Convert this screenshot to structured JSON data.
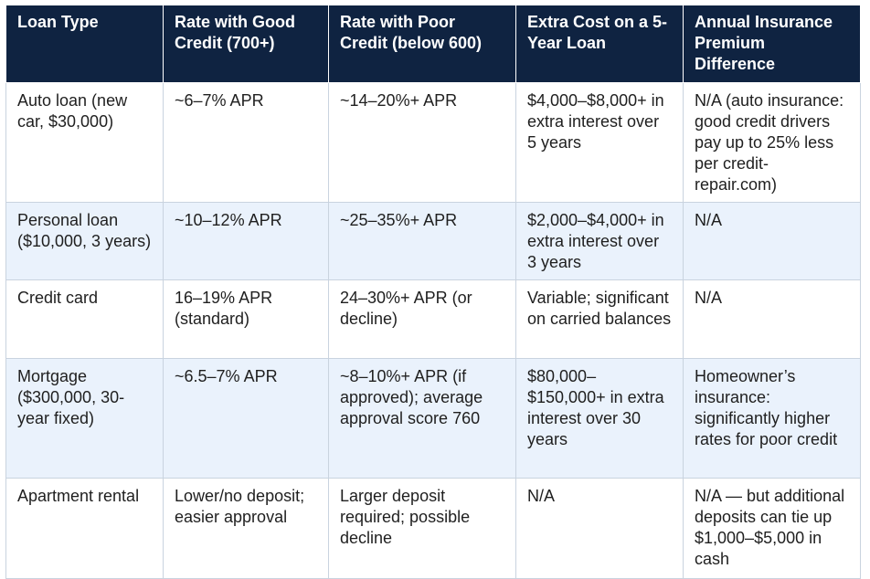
{
  "table": {
    "headers": [
      "Loan Type",
      "Rate with Good Credit (700+)",
      "Rate with Poor Credit (below 600)",
      "Extra Cost on a 5-Year Loan",
      "Annual Insurance Premium Difference"
    ],
    "rows": [
      [
        "Auto loan (new car, $30,000)",
        "~6–7% APR",
        "~14–20%+ APR",
        "$4,000–$8,000+ in extra interest over 5 years",
        "N/A (auto insurance: good credit drivers pay up to 25% less per credit-repair.com)"
      ],
      [
        "Personal loan ($10,000, 3 years)",
        "~10–12% APR",
        "~25–35%+ APR",
        "$2,000–$4,000+ in extra interest over 3 years",
        "N/A"
      ],
      [
        "Credit card",
        "16–19% APR (standard)",
        "24–30%+ APR (or decline)",
        "Variable; significant on carried balances",
        "N/A"
      ],
      [
        "Mortgage ($300,000, 30-year fixed)",
        "~6.5–7% APR",
        "~8–10%+ APR (if approved); average approval score 760",
        "$80,000–$150,000+ in extra interest over 30 years",
        "Homeowner’s insurance: significantly higher rates for poor credit"
      ],
      [
        "Apartment rental",
        "Lower/no deposit; easier approval",
        "Larger deposit required; possible decline",
        "N/A",
        "N/A — but additional deposits can tie up $1,000–$5,000 in cash"
      ]
    ]
  }
}
